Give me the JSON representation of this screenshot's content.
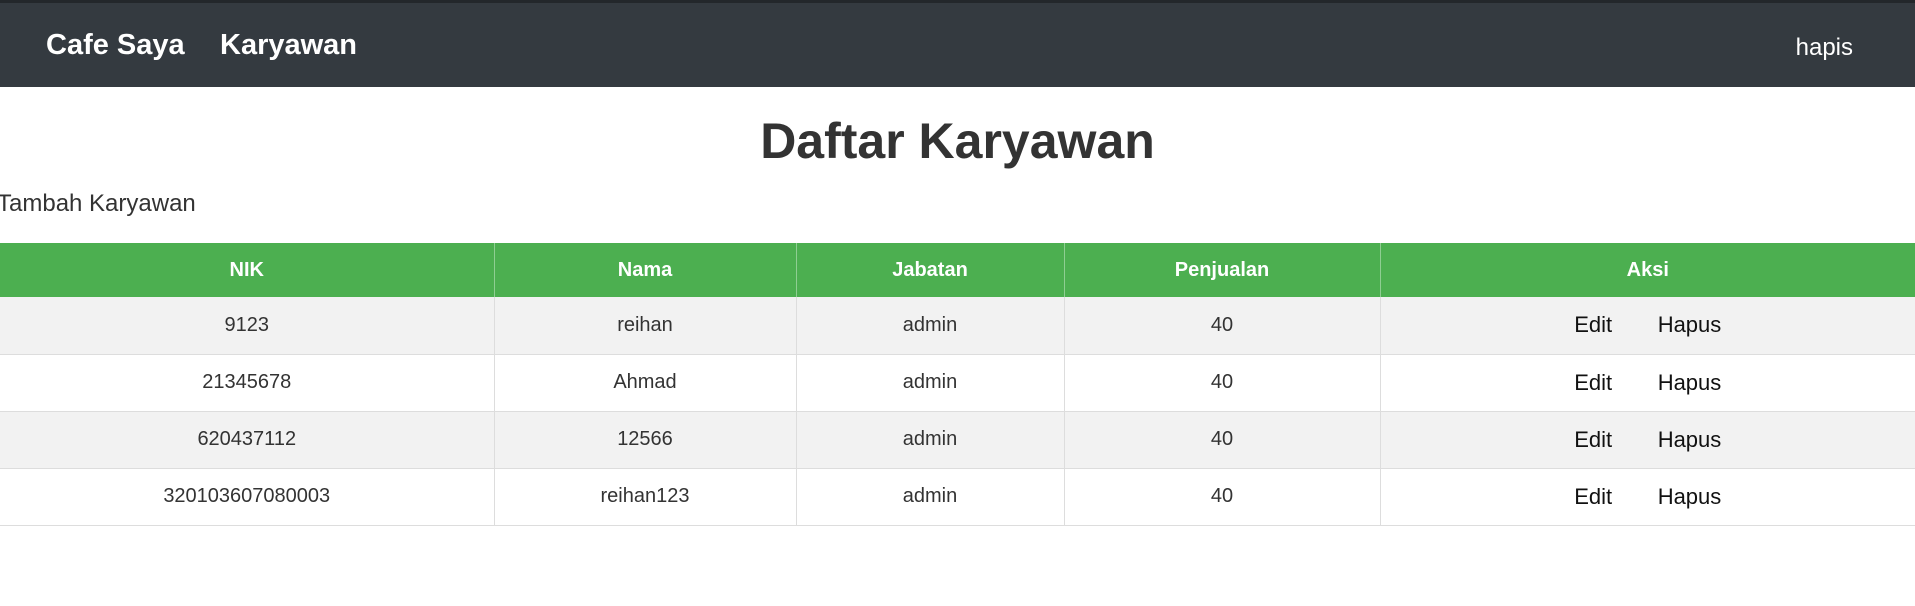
{
  "navbar": {
    "brand": "Cafe Saya",
    "link": "Karyawan",
    "user": "hapis"
  },
  "page": {
    "title": "Daftar Karyawan",
    "add_link": "Tambah Karyawan"
  },
  "table": {
    "headers": [
      "NIK",
      "Nama",
      "Jabatan",
      "Penjualan",
      "Aksi"
    ],
    "rows": [
      {
        "nik": "9123",
        "nama": "reihan",
        "jabatan": "admin",
        "penjualan": "40"
      },
      {
        "nik": "21345678",
        "nama": "Ahmad",
        "jabatan": "admin",
        "penjualan": "40"
      },
      {
        "nik": "620437112",
        "nama": "12566",
        "jabatan": "admin",
        "penjualan": "40"
      },
      {
        "nik": "320103607080003",
        "nama": "reihan123",
        "jabatan": "admin",
        "penjualan": "40"
      }
    ],
    "actions": {
      "edit": "Edit",
      "delete": "Hapus"
    }
  }
}
